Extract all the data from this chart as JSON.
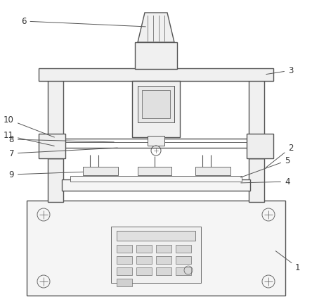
{
  "bg_color": "#ffffff",
  "line_color": "#555555",
  "line_width": 1.0,
  "thin_line": 0.6,
  "label_color": "#333333",
  "label_fontsize": 8.5,
  "figsize": [
    4.44,
    4.32
  ],
  "dpi": 100
}
